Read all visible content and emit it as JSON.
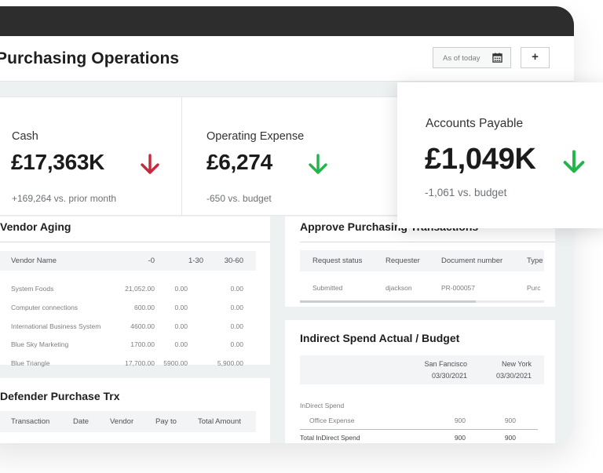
{
  "header": {
    "title": "Purchasing Operations",
    "date_placeholder": "As of today",
    "add_label": "+"
  },
  "kpis": {
    "cash": {
      "label": "Cash",
      "value": "£17,363K",
      "sub": "+169,264 vs. prior month",
      "trend": "down",
      "trend_color": "#c8283b"
    },
    "opex": {
      "label": "Operating Expense",
      "value": "£6,274",
      "sub": "-650 vs. budget",
      "trend": "down",
      "trend_color": "#21b54a"
    },
    "ap": {
      "label": "Accounts Payable",
      "value": "£1,049K",
      "sub": "-1,061 vs. budget",
      "trend": "down",
      "trend_color": "#21b54a"
    }
  },
  "vendor_aging": {
    "title": "Vendor Aging",
    "columns": [
      "Vendor Name",
      "-0",
      "1-30",
      "30-60"
    ],
    "rows": [
      [
        "System Foods",
        "21,052.00",
        "0.00",
        "0.00"
      ],
      [
        "Computer connections",
        "600.00",
        "0.00",
        "0.00"
      ],
      [
        "International Business System",
        "4600.00",
        "0.00",
        "0.00"
      ],
      [
        "Blue Sky Marketing",
        "1700.00",
        "0.00",
        "0.00"
      ],
      [
        "Blue Triangle",
        "17,700.00",
        "5900.00",
        "5,900.00"
      ]
    ]
  },
  "defender": {
    "title": "Defender Purchase Trx",
    "columns": [
      "Transaction",
      "Date",
      "Vendor",
      "Pay to",
      "Total Amount"
    ]
  },
  "approve": {
    "title": "Approve Purchasing Transactions",
    "columns": [
      "Request status",
      "Requester",
      "Document number",
      "Type"
    ],
    "rows": [
      [
        "Submitted",
        "djackson",
        "PR-000057",
        "Purc"
      ]
    ],
    "scroll_fraction": 0.72
  },
  "indirect": {
    "title": "Indirect Spend Actual / Budget",
    "columns": [
      {
        "name": "San Fancisco",
        "date": "03/30/2021"
      },
      {
        "name": "New York",
        "date": "03/30/2021"
      }
    ],
    "group_label": "InDirect Spend",
    "rows": [
      {
        "label": "Office Expense",
        "values": [
          "900",
          "900"
        ]
      }
    ],
    "total": {
      "label": "Total InDirect Spend",
      "values": [
        "900",
        "900"
      ]
    }
  }
}
